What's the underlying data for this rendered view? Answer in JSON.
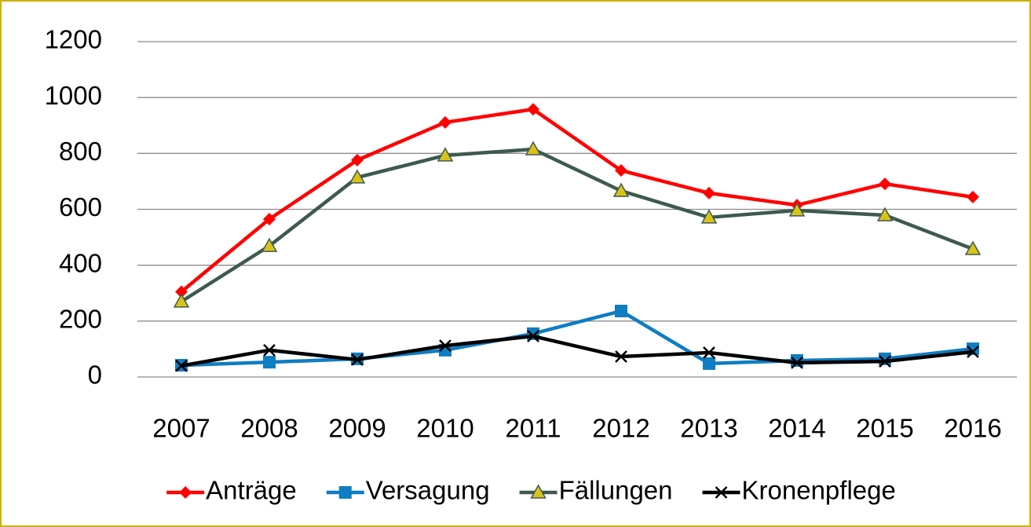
{
  "chart_data": {
    "type": "line",
    "categories": [
      "2007",
      "2008",
      "2009",
      "2010",
      "2011",
      "2012",
      "2013",
      "2014",
      "2015",
      "2016"
    ],
    "series": [
      {
        "name": "Anträge",
        "color": "#ff0000",
        "marker": "diamond",
        "values": [
          305,
          565,
          776,
          911,
          958,
          739,
          658,
          615,
          691,
          644
        ]
      },
      {
        "name": "Versagung",
        "color": "#0f7dc2",
        "marker": "square",
        "values": [
          42,
          53,
          65,
          96,
          155,
          236,
          48,
          59,
          65,
          101
        ]
      },
      {
        "name": "Fällungen",
        "color": "#3e5a4e",
        "marker": "triangle",
        "marker_color": "#d9c21a",
        "values": [
          270,
          469,
          714,
          793,
          815,
          666,
          571,
          596,
          579,
          458
        ]
      },
      {
        "name": "Kronenpflege",
        "color": "#000000",
        "marker": "x",
        "values": [
          40,
          96,
          62,
          112,
          146,
          73,
          87,
          51,
          56,
          90
        ]
      }
    ],
    "ylim": [
      0,
      1200
    ],
    "yticks": [
      0,
      200,
      400,
      600,
      800,
      1000,
      1200
    ],
    "grid": true,
    "legend": "bottom"
  }
}
